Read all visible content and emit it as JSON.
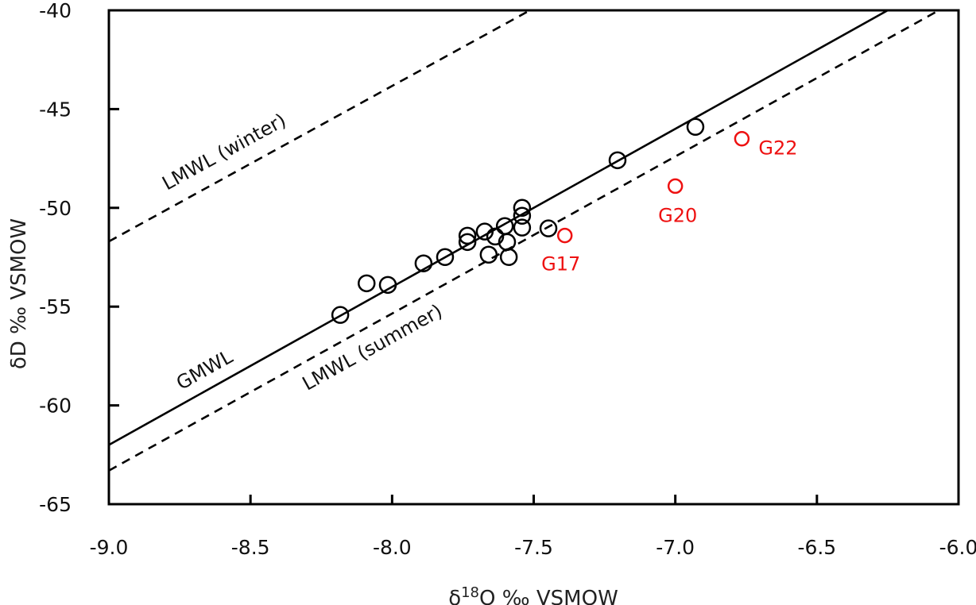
{
  "chart_data": {
    "type": "scatter",
    "title": "",
    "xlabel": "δ18O ‰ VSMOW",
    "xlabel_parts": {
      "prefix": "δ",
      "superscript": "18",
      "suffix": "O ‰ VSMOW"
    },
    "ylabel": "δD ‰ VSMOW",
    "xlim": [
      -9.0,
      -6.0
    ],
    "ylim": [
      -65,
      -40
    ],
    "xticks": [
      -9.0,
      -8.5,
      -8.0,
      -7.5,
      -7.0,
      -6.5,
      -6.0
    ],
    "xtick_labels": [
      "-9.0",
      "-8.5",
      "-8.0",
      "-7.5",
      "-7.0",
      "-6.5",
      "-6.0"
    ],
    "yticks": [
      -65,
      -60,
      -55,
      -50,
      -45,
      -40
    ],
    "ytick_labels": [
      "-65",
      "-60",
      "-55",
      "-50",
      "-45",
      "-40"
    ],
    "grid": false,
    "lines": [
      {
        "name": "GMWL",
        "label": "GMWL",
        "style": "solid",
        "slope": 8.0,
        "intercept": 10.0,
        "color": "#000000"
      },
      {
        "name": "LMWL (summer)",
        "label": "LMWL (summer)",
        "style": "dashed",
        "slope": 7.95,
        "intercept": 8.25,
        "color": "#000000"
      },
      {
        "name": "LMWL (winter)",
        "label": "LMWL (winter)",
        "style": "dashed",
        "slope": 7.87,
        "intercept": 19.13,
        "color": "#000000"
      }
    ],
    "series": [
      {
        "name": "samples",
        "color": "#000000",
        "marker": "open-circle",
        "points": [
          {
            "x": -8.183,
            "y": -55.42
          },
          {
            "x": -8.09,
            "y": -53.82
          },
          {
            "x": -8.015,
            "y": -53.9
          },
          {
            "x": -7.889,
            "y": -52.81
          },
          {
            "x": -7.813,
            "y": -52.49
          },
          {
            "x": -7.734,
            "y": -51.41
          },
          {
            "x": -7.734,
            "y": -51.73
          },
          {
            "x": -7.673,
            "y": -51.2
          },
          {
            "x": -7.659,
            "y": -52.37
          },
          {
            "x": -7.636,
            "y": -51.45
          },
          {
            "x": -7.602,
            "y": -50.92
          },
          {
            "x": -7.594,
            "y": -51.73
          },
          {
            "x": -7.588,
            "y": -52.49
          },
          {
            "x": -7.541,
            "y": -50.0
          },
          {
            "x": -7.541,
            "y": -50.4
          },
          {
            "x": -7.541,
            "y": -51.0
          },
          {
            "x": -7.448,
            "y": -51.04
          },
          {
            "x": -7.204,
            "y": -47.59
          },
          {
            "x": -6.929,
            "y": -45.9
          }
        ]
      },
      {
        "name": "highlighted",
        "color": "#ee1111",
        "marker": "open-circle",
        "points": [
          {
            "x": -7.39,
            "y": -51.4,
            "label": "G17",
            "label_pos": "below-left"
          },
          {
            "x": -7.0,
            "y": -48.9,
            "label": "G20",
            "label_pos": "below"
          },
          {
            "x": -6.765,
            "y": -46.5,
            "label": "G22",
            "label_pos": "right"
          }
        ]
      }
    ]
  }
}
